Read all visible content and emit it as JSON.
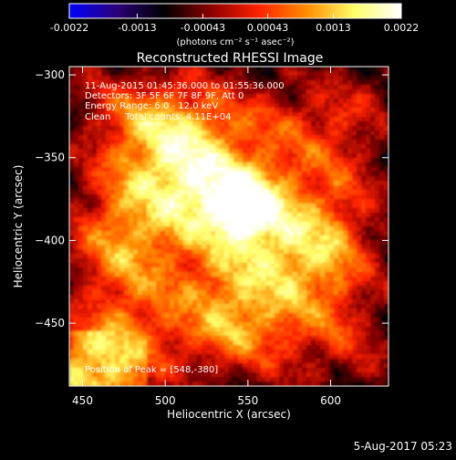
{
  "chart_data": {
    "type": "heatmap",
    "title": "Reconstructed RHESSI Image",
    "xlabel": "Heliocentric X (arcsec)",
    "ylabel": "Heliocentric Y (arcsec)",
    "xlim": [
      442,
      635
    ],
    "ylim": [
      -488,
      -295
    ],
    "xticks": [
      450,
      500,
      550,
      600
    ],
    "yticks": [
      -300,
      -350,
      -400,
      -450
    ],
    "colorbar": {
      "min": -0.0022,
      "max": 0.0022,
      "ticks": [
        -0.0022,
        -0.0013,
        -0.00043,
        0.00043,
        0.0013,
        0.0022
      ],
      "tick_labels": [
        "-0.0022",
        "-0.0013",
        "-0.00043",
        "0.00043",
        "0.0013",
        "0.0022"
      ],
      "units_label": "(photons cm⁻² s⁻¹ asec⁻²)",
      "colormap": [
        "#0000ff",
        "#2a0078",
        "#000000",
        "#8c0000",
        "#ff2200",
        "#ff8c00",
        "#ffff66",
        "#ffffff"
      ]
    },
    "sources": [
      {
        "x": 548,
        "y": -380,
        "value": 0.0022
      },
      {
        "x": 515,
        "y": -365,
        "value": 0.0014
      },
      {
        "x": 585,
        "y": -405,
        "value": 0.0011
      },
      {
        "x": 500,
        "y": -330,
        "value": 0.0009
      },
      {
        "x": 470,
        "y": -400,
        "value": 0.0008
      },
      {
        "x": 545,
        "y": -440,
        "value": 0.0009
      },
      {
        "x": 460,
        "y": -475,
        "value": 0.0012
      }
    ],
    "annotations": [
      "11-Aug-2015 01:45:36.000 to 01:55:36.000",
      "Detectors: 3F 5F 6F 7F 8F 9F, Att 0",
      "Energy Range: 6.0 - 12.0 keV",
      "Clean     Total counts: 4.11E+04"
    ],
    "peak_label": "Position of Peak = [548,-380]",
    "footer_date": "5-Aug-2017 05:23"
  }
}
